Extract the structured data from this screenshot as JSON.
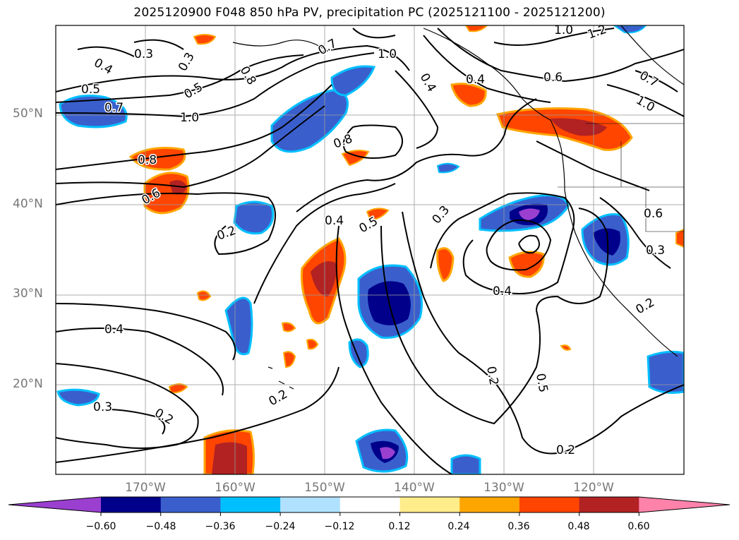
{
  "title": "2025120900 F048 850 hPa PV, precipitation PC (2025121100 - 2025121200)",
  "map": {
    "lat_labels": [
      "50°N",
      "40°N",
      "30°N",
      "20°N"
    ],
    "lon_labels": [
      "170°W",
      "160°W",
      "150°W",
      "140°W",
      "130°W",
      "120°W"
    ],
    "contour_labels": [
      "0.3",
      "0.4",
      "0.5",
      "0.7",
      "1.0",
      "0.8",
      "0.6",
      "0.7",
      "1.0",
      "0.4",
      "0.5",
      "0.3",
      "0.8",
      "0.6",
      "1.0",
      "1.2",
      "0.7",
      "1.0",
      "0.4",
      "0.8",
      "0.4",
      "0.2",
      "0.5",
      "0.3",
      "0.6",
      "0.3",
      "0.4",
      "0.4",
      "0.3",
      "0.2",
      "0.2",
      "0.2",
      "0.5",
      "0.2",
      "0.2"
    ]
  },
  "colorbar": {
    "ticks": [
      "−0.60",
      "−0.48",
      "−0.36",
      "−0.24",
      "−0.12",
      "0.12",
      "0.24",
      "0.36",
      "0.48",
      "0.60"
    ],
    "colors": [
      "#9a3fd0",
      "#00008b",
      "#3a5fcd",
      "#00bfff",
      "#b0e2ff",
      "#ffffff",
      "#ffec8b",
      "#ffa500",
      "#ff4500",
      "#b22222",
      "#ff82ab"
    ]
  }
}
